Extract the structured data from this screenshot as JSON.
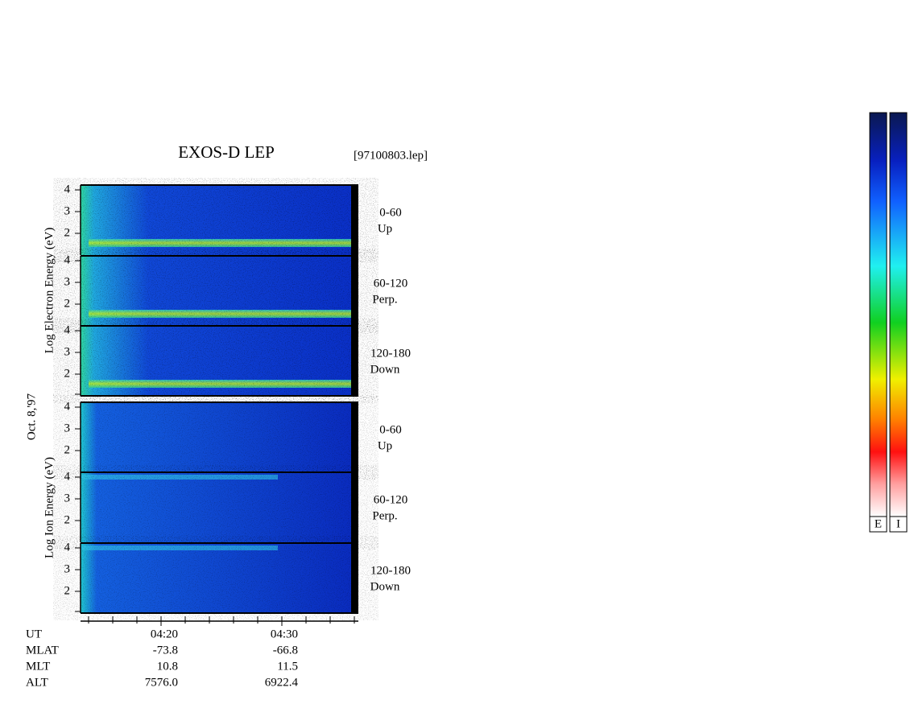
{
  "header": {
    "title": "EXOS-D LEP",
    "file": "[97100803.lep]",
    "date": "Oct. 8,'97"
  },
  "sections": [
    {
      "axis_label": "Log Electron Energy (eV)",
      "panels": [
        {
          "angle": "0-60",
          "direction": "Up"
        },
        {
          "angle": "60-120",
          "direction": "Perp."
        },
        {
          "angle": "120-180",
          "direction": "Down"
        }
      ],
      "yticks": [
        "4",
        "3",
        "2"
      ]
    },
    {
      "axis_label": "Log Ion Energy (eV)",
      "panels": [
        {
          "angle": "0-60",
          "direction": "Up"
        },
        {
          "angle": "60-120",
          "direction": "Perp."
        },
        {
          "angle": "120-180",
          "direction": "Down"
        }
      ],
      "yticks": [
        "4",
        "3",
        "2"
      ]
    }
  ],
  "footer": {
    "rows": [
      [
        "UT",
        "04:20",
        "04:30"
      ],
      [
        "MLAT",
        "-73.8",
        "-66.8"
      ],
      [
        "MLT",
        "10.8",
        "11.5"
      ],
      [
        "ALT",
        "7576.0",
        "6922.4"
      ]
    ]
  },
  "colorbars": [
    "E",
    "I"
  ]
}
